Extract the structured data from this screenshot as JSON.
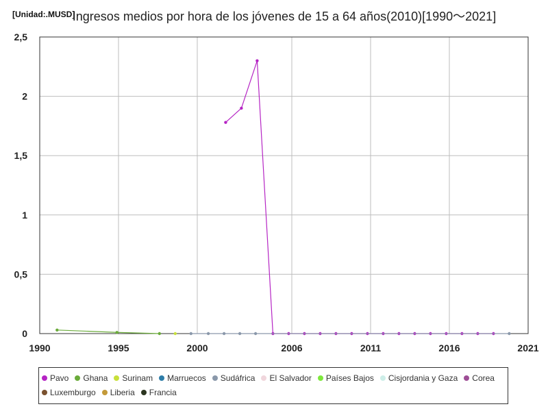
{
  "chart_data": {
    "type": "line",
    "title": "Ingresos medios por hora de los jóvenes de 15 a 64 años(2010)[1990～2021]",
    "unit_label": "[Unidad:.MUSD]",
    "xlim": [
      1990,
      2021
    ],
    "ylim": [
      0,
      2.5
    ],
    "x_ticks": [
      "1990",
      "1995",
      "2000",
      "2006",
      "2011",
      "2016",
      "2021"
    ],
    "y_ticks": [
      "2,5",
      "2",
      "1,5",
      "1",
      "0,5",
      "0"
    ],
    "grid": true,
    "legend_position": "bottom",
    "series": [
      {
        "name": "Pavo",
        "color": "#b524c4",
        "x": [
          2001.8,
          2002.8,
          2003.8,
          2004.8,
          2005.8,
          2006.8,
          2007.8,
          2008.8,
          2009.8,
          2010.8,
          2011.8,
          2012.8,
          2013.8,
          2014.8,
          2015.8,
          2016.8,
          2017.8,
          2018.8
        ],
        "y": [
          1.78,
          1.9,
          2.3,
          0,
          0,
          0,
          0,
          0,
          0,
          0,
          0,
          0,
          0,
          0,
          0,
          0,
          0,
          0
        ]
      },
      {
        "name": "Ghana",
        "color": "#6aab3a",
        "x": [
          1991.1,
          1994.9,
          1997.6
        ],
        "y": [
          0.03,
          0.01,
          0
        ]
      },
      {
        "name": "Surinam",
        "color": "#c8e03a",
        "x": [
          1998.6
        ],
        "y": [
          0
        ]
      },
      {
        "name": "Marruecos",
        "color": "#2e7da8",
        "x": [],
        "y": []
      },
      {
        "name": "Sudáfrica",
        "color": "#8a98aa",
        "x": [
          1999.6,
          2000.7,
          2001.7,
          2002.7,
          2003.7,
          2019.8
        ],
        "y": [
          0,
          0,
          0,
          0,
          0,
          0
        ]
      },
      {
        "name": "El Salvador",
        "color": "#f0d6dc",
        "x": [],
        "y": []
      },
      {
        "name": "Países Bajos",
        "color": "#7ee83c",
        "x": [],
        "y": []
      },
      {
        "name": "Cisjordania y Gaza",
        "color": "#cdeee8",
        "x": [],
        "y": []
      },
      {
        "name": "Corea",
        "color": "#9e4e96",
        "x": [],
        "y": []
      },
      {
        "name": "Luxemburgo",
        "color": "#7a5230",
        "x": [],
        "y": []
      },
      {
        "name": "Liberia",
        "color": "#c39a3a",
        "x": [],
        "y": []
      },
      {
        "name": "Francia",
        "color": "#2b3520",
        "x": [],
        "y": []
      }
    ]
  }
}
